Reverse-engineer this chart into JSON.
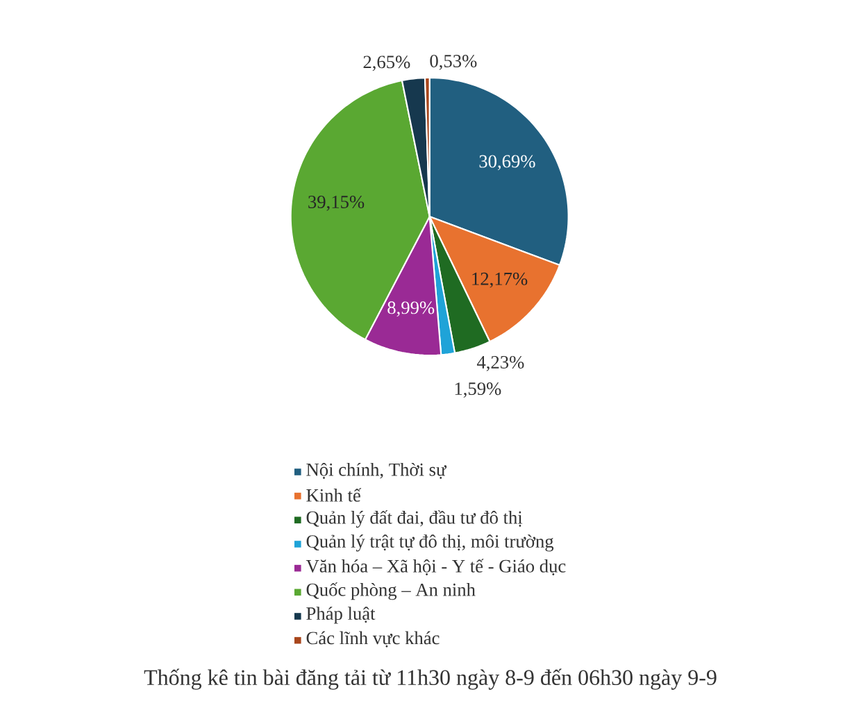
{
  "chart_data": {
    "type": "pie",
    "title": "Thống kê tin bài đăng tải từ 11h30 ngày 8-9 đến 06h30 ngày 9-9",
    "categories": [
      "Nội chính, Thời sự",
      "Kinh tế",
      "Quản lý đất đai, đầu tư đô thị",
      "Quản lý trật tự đô thị, môi trường",
      "Văn hóa – Xã hội - Y tế - Giáo dục",
      "Quốc phòng – An ninh",
      "Pháp luật",
      "Các lĩnh vực khác"
    ],
    "values": [
      30.69,
      12.17,
      4.23,
      1.59,
      8.99,
      39.15,
      2.65,
      0.53
    ],
    "value_labels": [
      "30,69%",
      "12,17%",
      "4,23%",
      "1,59%",
      "8,99%",
      "39,15%",
      "2,65%",
      "0,53%"
    ],
    "colors": [
      "#215f80",
      "#e8722f",
      "#1f6b22",
      "#1fa3d8",
      "#9a2a95",
      "#5aa832",
      "#16384e",
      "#a8461c"
    ],
    "legend": "bottom"
  }
}
